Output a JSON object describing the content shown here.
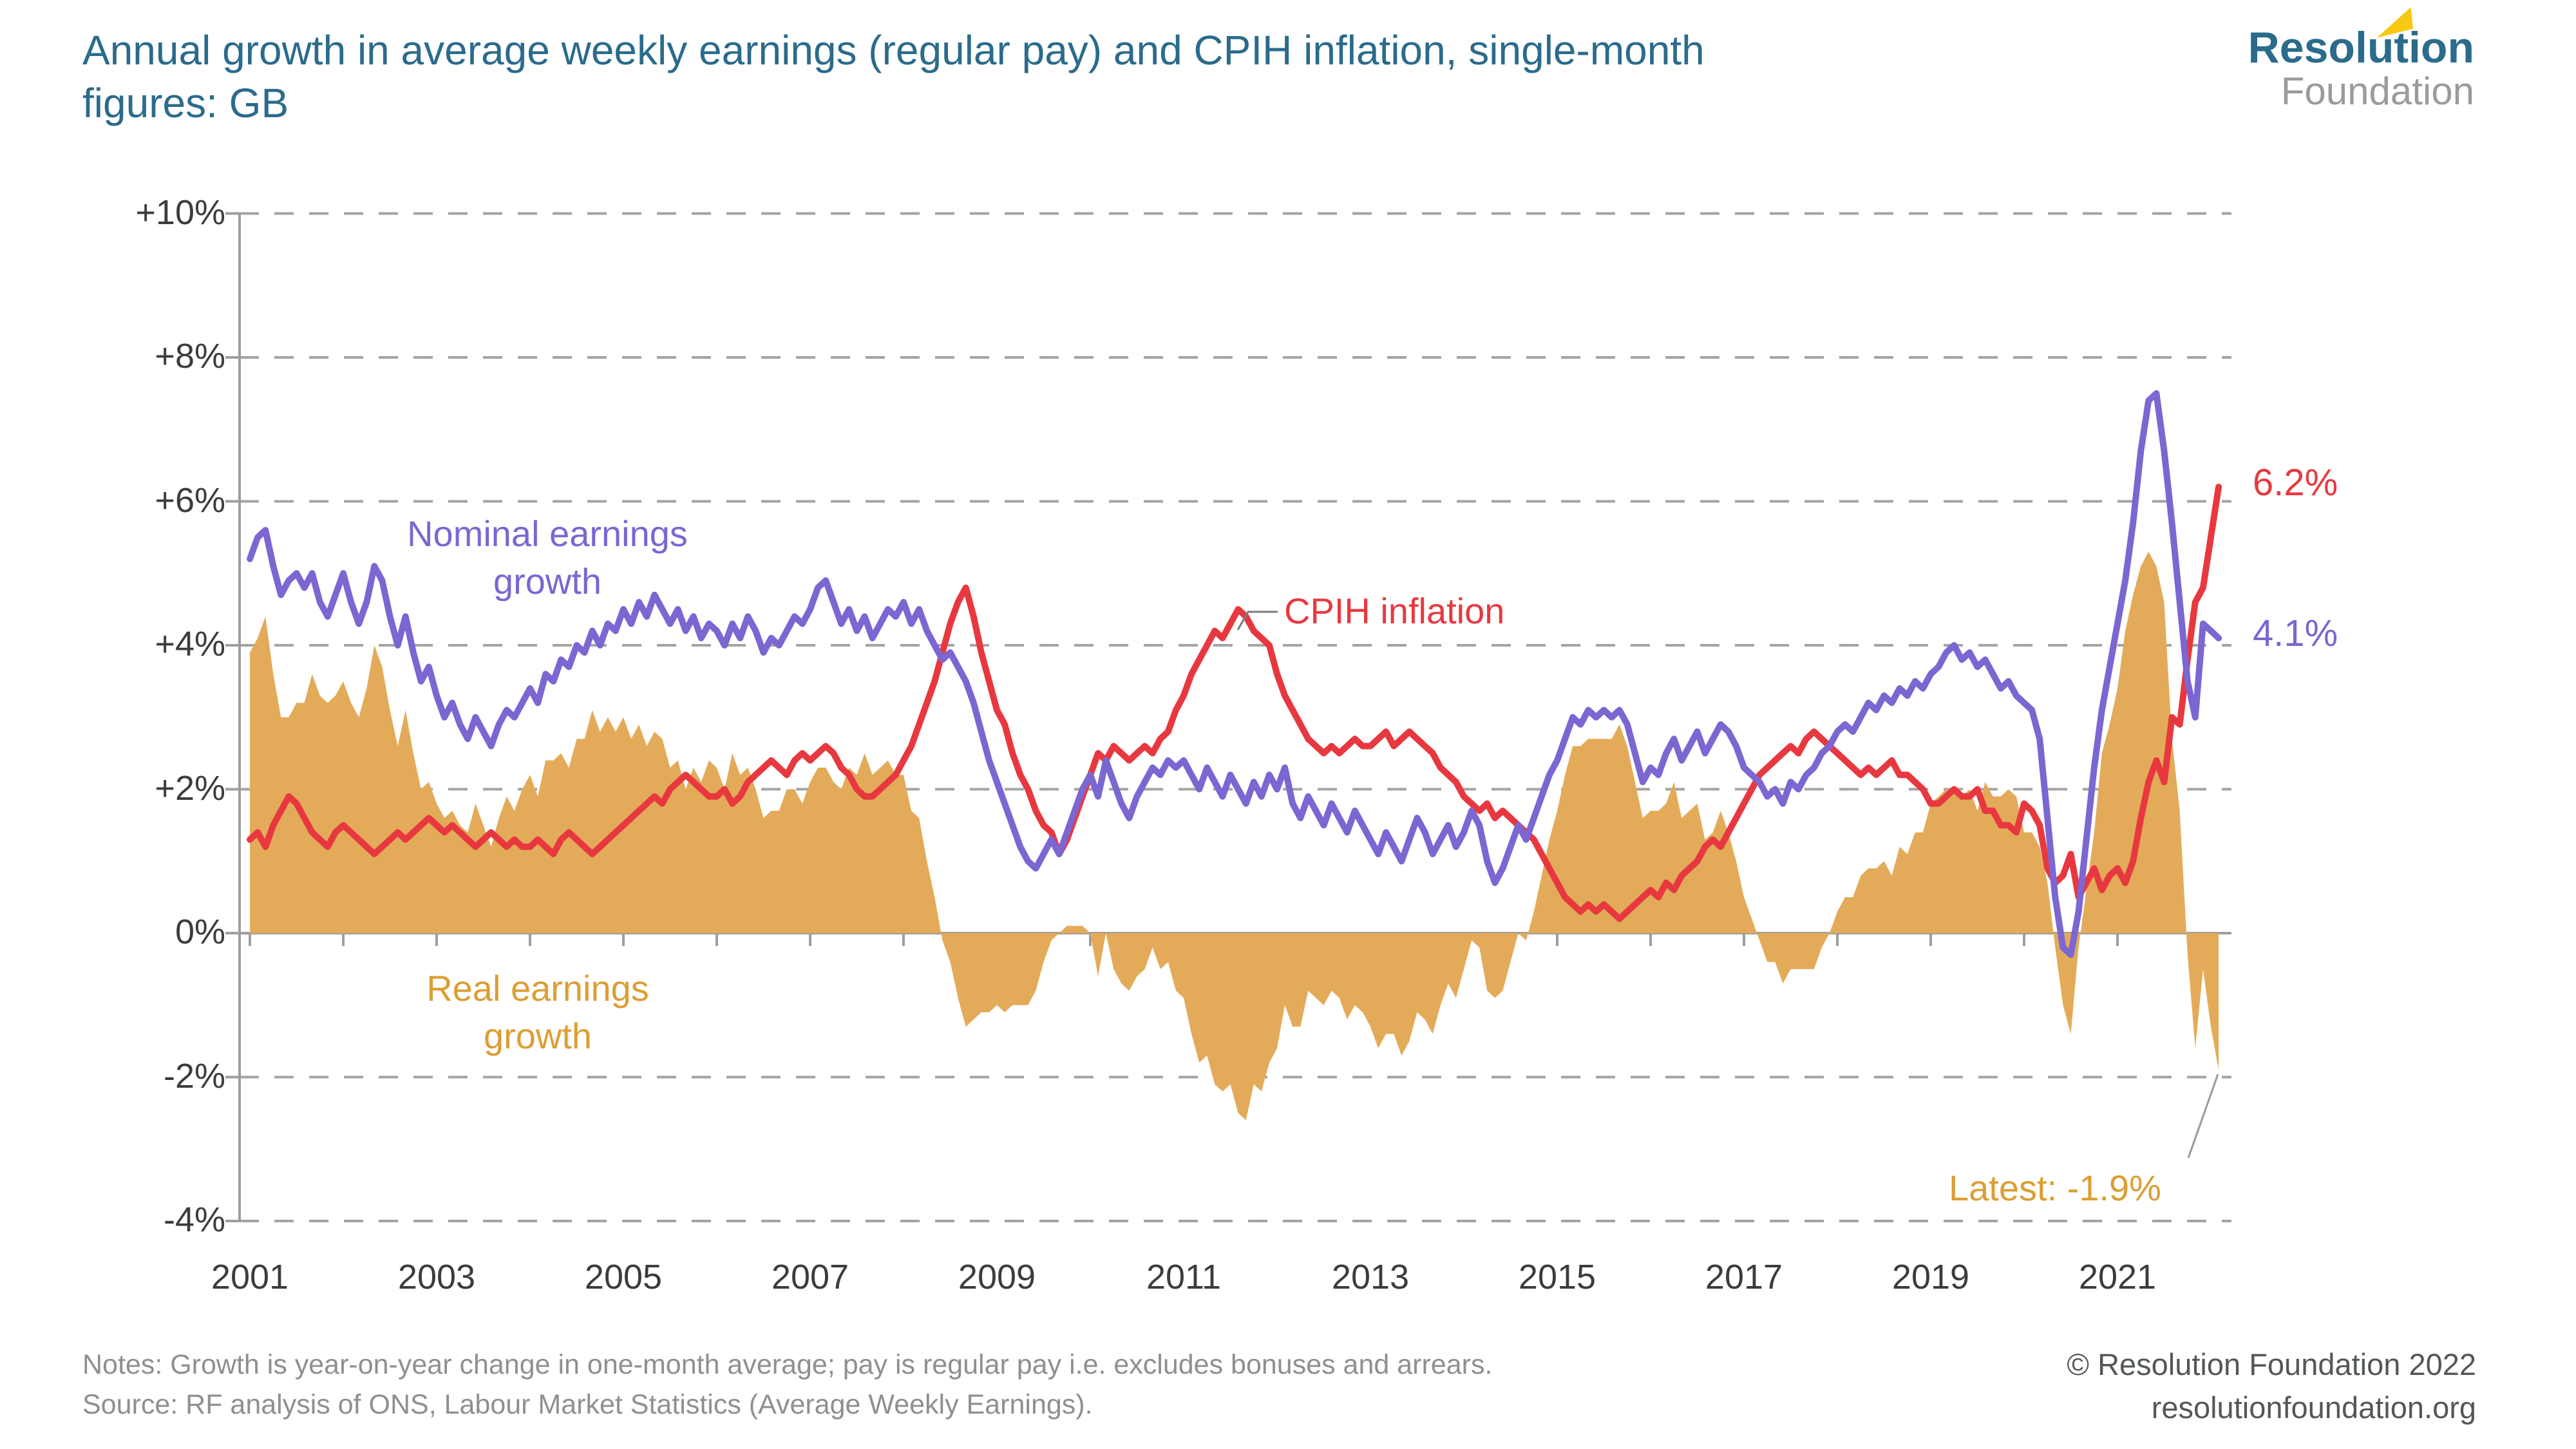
{
  "title": {
    "line1": "Annual growth in average weekly earnings (regular pay) and CPIH inflation, single-month",
    "line2": "figures: GB"
  },
  "logo": {
    "line1": "Resolution",
    "line2": "Foundation",
    "flag_color": "#f7c913",
    "brand_teal": "#2b6b8c",
    "brand_gray": "#9b9b9b"
  },
  "annotations": {
    "nominal_label": "Nominal earnings growth",
    "cpih_label": "CPIH inflation",
    "real_label": "Real earnings growth",
    "latest_label": "Latest: -1.9%",
    "cpih_end_label": "6.2%",
    "nominal_end_label": "4.1%"
  },
  "footer": {
    "notes": "Notes: Growth is year-on-year change in one-month average; pay is regular pay i.e. excludes bonuses and arrears.",
    "source": "Source: RF analysis of ONS, Labour Market Statistics (Average Weekly Earnings).",
    "copyright": "© Resolution Foundation 2022",
    "website": "resolutionfoundation.org"
  },
  "chart_data": {
    "type": "line",
    "title": "Annual growth in average weekly earnings (regular pay) and CPIH inflation, single-month figures: GB",
    "x_start": "2001-01",
    "x_end": "2022-02",
    "frequency": "monthly",
    "x_tick_years": [
      2001,
      2003,
      2005,
      2007,
      2009,
      2011,
      2013,
      2015,
      2017,
      2019,
      2021
    ],
    "y_ticks": [
      "+10%",
      "+8%",
      "+6%",
      "+4%",
      "+2%",
      "0%",
      "-2%",
      "-4%"
    ],
    "y_values": [
      10,
      8,
      6,
      4,
      2,
      0,
      -2,
      -4
    ],
    "ylim": [
      -4,
      10
    ],
    "grid": "dashed horizontal lines, solid zero axis with yearly ticks",
    "legend_position": "inline labels on chart",
    "series": [
      {
        "name": "Nominal earnings growth",
        "type": "line",
        "color": "#7b66d2",
        "end_label": "4.1%",
        "values": [
          5.2,
          5.5,
          5.6,
          5.1,
          4.7,
          4.9,
          5.0,
          4.8,
          5.0,
          4.6,
          4.4,
          4.7,
          5.0,
          4.6,
          4.3,
          4.6,
          5.1,
          4.9,
          4.4,
          4.0,
          4.4,
          3.9,
          3.5,
          3.7,
          3.3,
          3.0,
          3.2,
          2.9,
          2.7,
          3.0,
          2.8,
          2.6,
          2.9,
          3.1,
          3.0,
          3.2,
          3.4,
          3.2,
          3.6,
          3.5,
          3.8,
          3.7,
          4.0,
          3.9,
          4.2,
          4.0,
          4.3,
          4.2,
          4.5,
          4.3,
          4.6,
          4.4,
          4.7,
          4.5,
          4.3,
          4.5,
          4.2,
          4.4,
          4.1,
          4.3,
          4.2,
          4.0,
          4.3,
          4.1,
          4.4,
          4.2,
          3.9,
          4.1,
          4.0,
          4.2,
          4.4,
          4.3,
          4.5,
          4.8,
          4.9,
          4.6,
          4.3,
          4.5,
          4.2,
          4.4,
          4.1,
          4.3,
          4.5,
          4.4,
          4.6,
          4.3,
          4.5,
          4.2,
          4.0,
          3.8,
          3.9,
          3.7,
          3.5,
          3.2,
          2.8,
          2.4,
          2.1,
          1.8,
          1.5,
          1.2,
          1.0,
          0.9,
          1.1,
          1.3,
          1.1,
          1.4,
          1.7,
          2.0,
          2.2,
          1.9,
          2.4,
          2.1,
          1.8,
          1.6,
          1.9,
          2.1,
          2.3,
          2.2,
          2.4,
          2.3,
          2.4,
          2.2,
          2.0,
          2.3,
          2.1,
          1.9,
          2.2,
          2.0,
          1.8,
          2.1,
          1.9,
          2.2,
          2.0,
          2.3,
          1.8,
          1.6,
          1.9,
          1.7,
          1.5,
          1.8,
          1.6,
          1.4,
          1.7,
          1.5,
          1.3,
          1.1,
          1.4,
          1.2,
          1.0,
          1.3,
          1.6,
          1.4,
          1.1,
          1.3,
          1.5,
          1.2,
          1.4,
          1.7,
          1.5,
          1.0,
          0.7,
          0.9,
          1.2,
          1.5,
          1.3,
          1.6,
          1.9,
          2.2,
          2.4,
          2.7,
          3.0,
          2.9,
          3.1,
          3.0,
          3.1,
          3.0,
          3.1,
          2.9,
          2.5,
          2.1,
          2.3,
          2.2,
          2.5,
          2.7,
          2.4,
          2.6,
          2.8,
          2.5,
          2.7,
          2.9,
          2.8,
          2.6,
          2.3,
          2.2,
          2.1,
          1.9,
          2.0,
          1.8,
          2.1,
          2.0,
          2.2,
          2.3,
          2.5,
          2.6,
          2.8,
          2.9,
          2.8,
          3.0,
          3.2,
          3.1,
          3.3,
          3.2,
          3.4,
          3.3,
          3.5,
          3.4,
          3.6,
          3.7,
          3.9,
          4.0,
          3.8,
          3.9,
          3.7,
          3.8,
          3.6,
          3.4,
          3.5,
          3.3,
          3.2,
          3.1,
          2.7,
          1.6,
          0.5,
          -0.2,
          -0.3,
          0.3,
          1.3,
          2.3,
          3.1,
          3.7,
          4.3,
          4.9,
          5.7,
          6.7,
          7.4,
          7.5,
          6.7,
          5.7,
          4.6,
          3.5,
          3.0,
          4.3,
          4.2,
          4.1
        ]
      },
      {
        "name": "CPIH inflation",
        "type": "line",
        "color": "#e8383f",
        "end_label": "6.2%",
        "values": [
          1.3,
          1.4,
          1.2,
          1.5,
          1.7,
          1.9,
          1.8,
          1.6,
          1.4,
          1.3,
          1.2,
          1.4,
          1.5,
          1.4,
          1.3,
          1.2,
          1.1,
          1.2,
          1.3,
          1.4,
          1.3,
          1.4,
          1.5,
          1.6,
          1.5,
          1.4,
          1.5,
          1.4,
          1.3,
          1.2,
          1.3,
          1.4,
          1.3,
          1.2,
          1.3,
          1.2,
          1.2,
          1.3,
          1.2,
          1.1,
          1.3,
          1.4,
          1.3,
          1.2,
          1.1,
          1.2,
          1.3,
          1.4,
          1.5,
          1.6,
          1.7,
          1.8,
          1.9,
          1.8,
          2.0,
          2.1,
          2.2,
          2.1,
          2.0,
          1.9,
          1.9,
          2.0,
          1.8,
          1.9,
          2.1,
          2.2,
          2.3,
          2.4,
          2.3,
          2.2,
          2.4,
          2.5,
          2.4,
          2.5,
          2.6,
          2.5,
          2.3,
          2.2,
          2.0,
          1.9,
          1.9,
          2.0,
          2.1,
          2.2,
          2.4,
          2.6,
          2.9,
          3.2,
          3.5,
          3.9,
          4.3,
          4.6,
          4.8,
          4.4,
          3.9,
          3.5,
          3.1,
          2.9,
          2.5,
          2.2,
          2.0,
          1.7,
          1.5,
          1.4,
          1.1,
          1.3,
          1.6,
          1.9,
          2.2,
          2.5,
          2.4,
          2.6,
          2.5,
          2.4,
          2.5,
          2.6,
          2.5,
          2.7,
          2.8,
          3.1,
          3.3,
          3.6,
          3.8,
          4.0,
          4.2,
          4.1,
          4.3,
          4.5,
          4.4,
          4.2,
          4.1,
          4.0,
          3.6,
          3.3,
          3.1,
          2.9,
          2.7,
          2.6,
          2.5,
          2.6,
          2.5,
          2.6,
          2.7,
          2.6,
          2.6,
          2.7,
          2.8,
          2.6,
          2.7,
          2.8,
          2.7,
          2.6,
          2.5,
          2.3,
          2.2,
          2.1,
          1.9,
          1.8,
          1.7,
          1.8,
          1.6,
          1.7,
          1.6,
          1.5,
          1.4,
          1.3,
          1.1,
          0.9,
          0.7,
          0.5,
          0.4,
          0.3,
          0.4,
          0.3,
          0.4,
          0.3,
          0.2,
          0.3,
          0.4,
          0.5,
          0.6,
          0.5,
          0.7,
          0.6,
          0.8,
          0.9,
          1.0,
          1.2,
          1.3,
          1.2,
          1.4,
          1.6,
          1.8,
          2.0,
          2.2,
          2.3,
          2.4,
          2.5,
          2.6,
          2.5,
          2.7,
          2.8,
          2.7,
          2.6,
          2.5,
          2.4,
          2.3,
          2.2,
          2.3,
          2.2,
          2.3,
          2.4,
          2.2,
          2.2,
          2.1,
          2.0,
          1.8,
          1.8,
          1.9,
          2.0,
          1.9,
          1.9,
          2.0,
          1.7,
          1.7,
          1.5,
          1.5,
          1.4,
          1.8,
          1.7,
          1.5,
          0.9,
          0.7,
          0.8,
          1.1,
          0.5,
          0.7,
          0.9,
          0.6,
          0.8,
          0.9,
          0.7,
          1.0,
          1.6,
          2.1,
          2.4,
          2.1,
          3.0,
          2.9,
          3.8,
          4.6,
          4.8,
          5.5,
          6.2
        ]
      },
      {
        "name": "Real earnings growth",
        "type": "area",
        "color": "#e3ab59",
        "latest_label": "Latest: -1.9%",
        "latest_value": -1.9,
        "values": [
          3.9,
          4.1,
          4.4,
          3.6,
          3.0,
          3.0,
          3.2,
          3.2,
          3.6,
          3.3,
          3.2,
          3.3,
          3.5,
          3.2,
          3.0,
          3.4,
          4.0,
          3.7,
          3.1,
          2.6,
          3.1,
          2.5,
          2.0,
          2.1,
          1.8,
          1.6,
          1.7,
          1.5,
          1.4,
          1.8,
          1.5,
          1.2,
          1.6,
          1.9,
          1.7,
          2.0,
          2.2,
          1.9,
          2.4,
          2.4,
          2.5,
          2.3,
          2.7,
          2.7,
          3.1,
          2.8,
          3.0,
          2.8,
          3.0,
          2.7,
          2.9,
          2.6,
          2.8,
          2.7,
          2.3,
          2.4,
          2.0,
          2.3,
          2.1,
          2.4,
          2.3,
          2.0,
          2.5,
          2.2,
          2.3,
          2.0,
          1.6,
          1.7,
          1.7,
          2.0,
          2.0,
          1.8,
          2.1,
          2.3,
          2.3,
          2.1,
          2.0,
          2.3,
          2.2,
          2.5,
          2.2,
          2.3,
          2.4,
          2.2,
          2.2,
          1.7,
          1.6,
          1.0,
          0.5,
          -0.1,
          -0.4,
          -0.9,
          -1.3,
          -1.2,
          -1.1,
          -1.1,
          -1.0,
          -1.1,
          -1.0,
          -1.0,
          -1.0,
          -0.8,
          -0.4,
          -0.1,
          0.0,
          0.1,
          0.1,
          0.1,
          0.0,
          -0.6,
          0.0,
          -0.5,
          -0.7,
          -0.8,
          -0.6,
          -0.5,
          -0.2,
          -0.5,
          -0.4,
          -0.8,
          -0.9,
          -1.4,
          -1.8,
          -1.7,
          -2.1,
          -2.2,
          -2.1,
          -2.5,
          -2.6,
          -2.1,
          -2.2,
          -1.8,
          -1.6,
          -1.0,
          -1.3,
          -1.3,
          -0.8,
          -0.9,
          -1.0,
          -0.8,
          -0.9,
          -1.2,
          -1.0,
          -1.1,
          -1.3,
          -1.6,
          -1.4,
          -1.4,
          -1.7,
          -1.5,
          -1.1,
          -1.2,
          -1.4,
          -1.0,
          -0.7,
          -0.9,
          -0.5,
          -0.1,
          -0.2,
          -0.8,
          -0.9,
          -0.8,
          -0.4,
          0.0,
          -0.1,
          0.3,
          0.8,
          1.3,
          1.7,
          2.2,
          2.6,
          2.6,
          2.7,
          2.7,
          2.7,
          2.7,
          2.9,
          2.6,
          2.1,
          1.6,
          1.7,
          1.7,
          1.8,
          2.1,
          1.6,
          1.7,
          1.8,
          1.3,
          1.4,
          1.7,
          1.4,
          1.0,
          0.5,
          0.2,
          -0.1,
          -0.4,
          -0.4,
          -0.7,
          -0.5,
          -0.5,
          -0.5,
          -0.5,
          -0.2,
          0.0,
          0.3,
          0.5,
          0.5,
          0.8,
          0.9,
          0.9,
          1.0,
          0.8,
          1.2,
          1.1,
          1.4,
          1.4,
          1.8,
          1.9,
          2.0,
          2.0,
          1.9,
          2.0,
          1.7,
          2.1,
          1.9,
          1.9,
          2.0,
          1.9,
          1.4,
          1.4,
          1.2,
          0.7,
          -0.2,
          -1.0,
          -1.4,
          -0.2,
          0.6,
          1.4,
          2.5,
          2.9,
          3.4,
          4.2,
          4.7,
          5.1,
          5.3,
          5.1,
          4.6,
          2.7,
          1.7,
          -0.3,
          -1.6,
          -0.5,
          -1.3,
          -1.9
        ]
      }
    ]
  }
}
